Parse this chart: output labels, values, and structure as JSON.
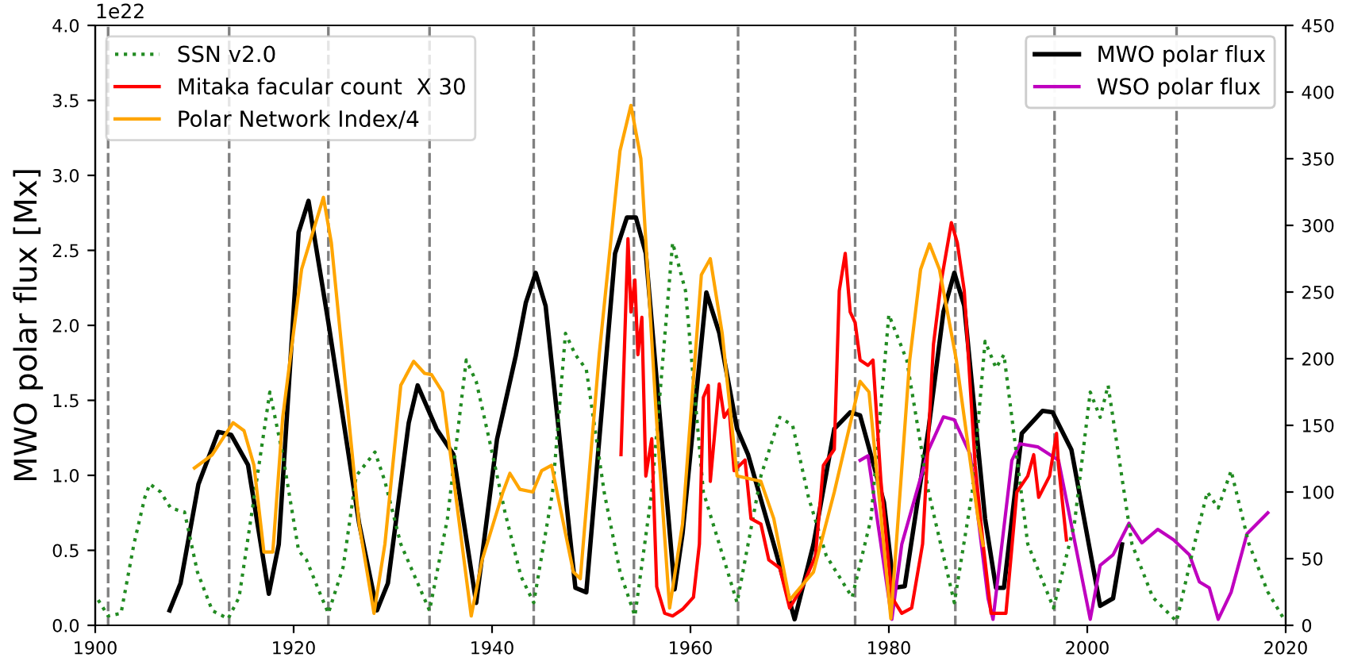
{
  "chart_data": {
    "type": "line",
    "ylabel": "MWO polar flux [Mx]",
    "annotations": [
      "1e22"
    ],
    "xlim": [
      1900,
      2020
    ],
    "xticks": [
      1900,
      1920,
      1940,
      1960,
      1980,
      2000,
      2020
    ],
    "ylim": [
      0,
      4
    ],
    "yticks": [
      {
        "value": 0,
        "label": "0.0"
      },
      0.5,
      {
        "value": 1,
        "label": "1.0"
      },
      1.5,
      {
        "value": 2,
        "label": "2.0"
      },
      2.5,
      {
        "value": 3,
        "label": "3.0"
      },
      3.5,
      {
        "value": 4,
        "label": "4.0"
      }
    ],
    "y2lim": [
      0,
      450
    ],
    "y2ticks": [
      0,
      50,
      100,
      150,
      200,
      250,
      300,
      350,
      400,
      450
    ],
    "grid": false,
    "legend": "top left",
    "ref_lines": [
      {
        "axis": "x",
        "value": 1901.3,
        "color": "#808080",
        "line_style": "dashed"
      },
      {
        "axis": "x",
        "value": 1913.5,
        "color": "#808080",
        "line_style": "dashed"
      },
      {
        "axis": "x",
        "value": 1923.5,
        "color": "#808080",
        "line_style": "dashed"
      },
      {
        "axis": "x",
        "value": 1933.7,
        "color": "#808080",
        "line_style": "dashed"
      },
      {
        "axis": "x",
        "value": 1944.2,
        "color": "#808080",
        "line_style": "dashed"
      },
      {
        "axis": "x",
        "value": 1954.3,
        "color": "#808080",
        "line_style": "dashed"
      },
      {
        "axis": "x",
        "value": 1964.8,
        "color": "#808080",
        "line_style": "dashed"
      },
      {
        "axis": "x",
        "value": 1976.6,
        "color": "#808080",
        "line_style": "dashed"
      },
      {
        "axis": "x",
        "value": 1986.7,
        "color": "#808080",
        "line_style": "dashed"
      },
      {
        "axis": "x",
        "value": 1996.7,
        "color": "#808080",
        "line_style": "dashed"
      },
      {
        "axis": "x",
        "value": 2009.0,
        "color": "#808080",
        "line_style": "dashed"
      }
    ],
    "series": [
      {
        "name": "SSN v2.0",
        "color": "#228b22",
        "axis": "y2",
        "line_style": "dotted",
        "x": [
          1900.3,
          1901.3,
          1902.6,
          1903.9,
          1905.0,
          1905.5,
          1906.6,
          1907.6,
          1909.0,
          1910.3,
          1911.8,
          1913.4,
          1914.5,
          1916.1,
          1917.6,
          1918.9,
          1920.5,
          1921.3,
          1922.6,
          1923.5,
          1925.0,
          1926.3,
          1928.2,
          1929.2,
          1930.8,
          1933.7,
          1935.5,
          1937.4,
          1938.4,
          1939.7,
          1941.3,
          1942.9,
          1944.2,
          1946.1,
          1947.4,
          1948.4,
          1949.5,
          1951.3,
          1952.9,
          1954.4,
          1956.1,
          1958.2,
          1959.5,
          1961.3,
          1962.9,
          1964.7,
          1967.1,
          1969.0,
          1970.3,
          1971.9,
          1973.7,
          1976.3,
          1978.2,
          1980.0,
          1981.8,
          1984.0,
          1986.6,
          1988.4,
          1989.7,
          1990.8,
          1991.6,
          1994.0,
          1996.6,
          1998.7,
          2000.3,
          2001.3,
          2002.1,
          2004.5,
          2006.6,
          2009.0,
          2010.8,
          2012.1,
          2013.2,
          2014.5,
          2016.3,
          2018.2,
          2019.8
        ],
        "values": [
          19,
          7,
          9,
          61,
          96,
          106,
          100,
          88,
          85,
          40,
          11,
          5,
          21,
          100,
          175,
          128,
          56,
          49,
          25,
          9,
          44,
          112,
          130,
          108,
          61,
          11,
          80,
          199,
          183,
          140,
          85,
          37,
          17,
          100,
          219,
          203,
          192,
          100,
          40,
          7,
          100,
          287,
          251,
          100,
          61,
          17,
          112,
          156,
          150,
          96,
          52,
          21,
          80,
          233,
          199,
          100,
          17,
          100,
          213,
          193,
          203,
          61,
          13,
          76,
          175,
          156,
          180,
          61,
          21,
          3,
          61,
          100,
          88,
          116,
          61,
          25,
          5
        ]
      },
      {
        "name": "Mitaka facular count  X 30",
        "color": "#ff0000",
        "axis": "y2",
        "line_style": "solid",
        "x": [
          1953.0,
          1953.7,
          1954.0,
          1954.4,
          1954.7,
          1955.1,
          1955.5,
          1956.1,
          1956.6,
          1957.4,
          1958.2,
          1959.2,
          1960.3,
          1960.9,
          1961.3,
          1961.8,
          1962.0,
          1962.9,
          1963.4,
          1963.9,
          1964.4,
          1965.5,
          1966.1,
          1967.1,
          1967.9,
          1969.0,
          1970.0,
          1971.3,
          1972.6,
          1973.4,
          1974.5,
          1975.0,
          1975.6,
          1976.1,
          1976.6,
          1977.1,
          1977.9,
          1978.4,
          1979.2,
          1980.3,
          1981.3,
          1982.3,
          1983.4,
          1984.5,
          1985.3,
          1986.3,
          1986.9,
          1987.6,
          1988.7,
          1989.5,
          1990.3,
          1991.8,
          1992.9,
          1994.0,
          1994.6,
          1995.1,
          1996.2,
          1996.9,
          1997.1,
          1997.9
        ],
        "values": [
          128,
          290,
          235,
          259,
          203,
          231,
          112,
          140,
          29,
          9,
          7,
          12,
          21,
          61,
          171,
          180,
          108,
          181,
          156,
          162,
          116,
          124,
          80,
          76,
          49,
          43,
          13,
          29,
          52,
          120,
          132,
          251,
          279,
          235,
          227,
          199,
          195,
          199,
          108,
          21,
          9,
          13,
          61,
          211,
          259,
          302,
          287,
          251,
          120,
          61,
          9,
          9,
          100,
          112,
          128,
          96,
          112,
          144,
          120,
          64
        ]
      },
      {
        "name": "Polar Network Index/4",
        "color": "#ffa500",
        "axis": "y2",
        "line_style": "solid",
        "x": [
          1910.0,
          1911.8,
          1913.9,
          1915.0,
          1916.0,
          1917.0,
          1917.9,
          1918.9,
          1920.8,
          1923.0,
          1923.8,
          1926.6,
          1928.1,
          1929.2,
          1930.8,
          1932.1,
          1933.2,
          1933.9,
          1935.0,
          1937.9,
          1939.0,
          1941.1,
          1941.8,
          1942.8,
          1944.1,
          1945.0,
          1946.0,
          1948.2,
          1948.9,
          1950.8,
          1952.9,
          1954.0,
          1955.0,
          1956.6,
          1957.9,
          1959.2,
          1961.1,
          1962.0,
          1963.2,
          1964.7,
          1967.1,
          1968.4,
          1970.0,
          1972.4,
          1974.5,
          1977.1,
          1978.0,
          1980.2,
          1982.1,
          1983.2,
          1984.1,
          1985.1,
          1986.8,
          1989.0,
          1989.5
        ],
        "values": [
          118,
          128,
          152,
          146,
          120,
          55,
          55,
          156,
          267,
          321,
          287,
          76,
          9,
          61,
          180,
          198,
          189,
          188,
          175,
          7,
          49,
          100,
          114,
          102,
          100,
          116,
          120,
          40,
          35,
          203,
          356,
          390,
          350,
          152,
          13,
          76,
          263,
          275,
          219,
          112,
          108,
          80,
          19,
          40,
          100,
          183,
          175,
          5,
          199,
          267,
          286,
          267,
          199,
          80,
          60
        ]
      },
      {
        "name": "MWO polar flux",
        "color": "#000000",
        "axis": "y",
        "line_style": "solid",
        "x": [
          1907.5,
          1908.6,
          1910.4,
          1912.4,
          1913.7,
          1915.4,
          1917.5,
          1918.5,
          1920.5,
          1921.5,
          1923.5,
          1926.6,
          1928.4,
          1929.5,
          1931.6,
          1932.5,
          1934.4,
          1936.1,
          1938.4,
          1940.5,
          1942.4,
          1943.4,
          1944.4,
          1945.4,
          1948.4,
          1949.5,
          1952.4,
          1953.6,
          1954.5,
          1955.5,
          1958.4,
          1959.2,
          1961.6,
          1962.9,
          1964.7,
          1965.8,
          1968.4,
          1970.5,
          1972.4,
          1974.5,
          1976.1,
          1977.1,
          1979.5,
          1980.5,
          1981.6,
          1984.0,
          1985.5,
          1986.6,
          1987.6,
          1989.7,
          1990.8,
          1991.6,
          1993.4,
          1995.5,
          1996.5,
          1998.4,
          2001.3,
          2002.6,
          2003.5
        ],
        "values": [
          0.1,
          0.28,
          0.94,
          1.29,
          1.27,
          1.07,
          0.21,
          0.54,
          2.62,
          2.83,
          2.02,
          0.68,
          0.1,
          0.28,
          1.35,
          1.6,
          1.31,
          1.14,
          0.15,
          1.24,
          1.8,
          2.15,
          2.35,
          2.13,
          0.25,
          0.22,
          2.48,
          2.72,
          2.72,
          2.48,
          0.24,
          0.61,
          2.22,
          1.95,
          1.31,
          1.14,
          0.54,
          0.04,
          0.54,
          1.31,
          1.42,
          1.4,
          0.82,
          0.25,
          0.26,
          1.31,
          2.09,
          2.35,
          2.13,
          0.71,
          0.25,
          0.25,
          1.28,
          1.43,
          1.42,
          1.17,
          0.13,
          0.18,
          0.54
        ]
      },
      {
        "name": "WSO polar flux",
        "color": "#bf00bf",
        "axis": "y",
        "line_style": "solid",
        "x": [
          1977.1,
          1977.9,
          1980.3,
          1981.3,
          1984.0,
          1985.5,
          1986.6,
          1988.2,
          1990.0,
          1990.5,
          1992.4,
          1993.2,
          1995.0,
          1997.1,
          2000.3,
          2001.3,
          2002.6,
          2004.2,
          2005.5,
          2007.1,
          2008.7,
          2010.3,
          2011.3,
          2012.3,
          2013.2,
          2014.5,
          2016.1,
          2018.2
        ],
        "values": [
          1.1,
          1.13,
          0.04,
          0.54,
          1.17,
          1.39,
          1.37,
          1.14,
          0.18,
          0.04,
          1.1,
          1.21,
          1.19,
          1.1,
          0.04,
          0.4,
          0.47,
          0.68,
          0.55,
          0.64,
          0.57,
          0.47,
          0.29,
          0.25,
          0.04,
          0.22,
          0.61,
          0.75
        ]
      }
    ]
  }
}
